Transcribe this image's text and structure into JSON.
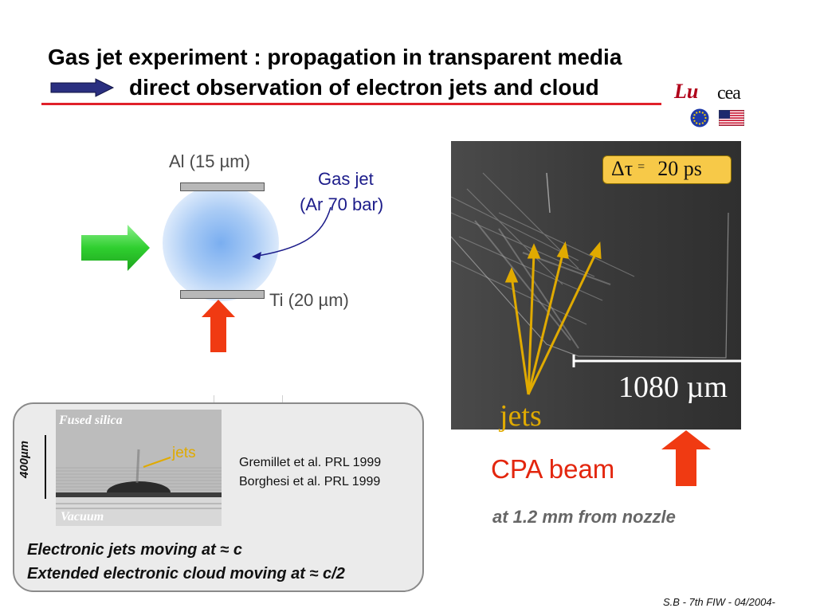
{
  "title": {
    "line1": "Gas jet experiment : propagation in transparent media",
    "line2": "direct observation of electron jets and cloud"
  },
  "logos": {
    "luli": "Lu",
    "cea": "cea",
    "eu_flag_icon": "eu-flag-icon",
    "us_flag_icon": "us-flag-icon"
  },
  "schematic": {
    "al_label": "Al (15 µm)",
    "ti_label": "Ti (20 µm)",
    "gas_jet_line1": "Gas jet",
    "gas_jet_line2": "(Ar 70 bar)"
  },
  "image_panel": {
    "delay_symbol": "Δτ",
    "delay_equals": "=",
    "delay_value": "20 ps",
    "scale_label": "1080 µm",
    "jets_label": "jets",
    "beam_label": "CPA beam",
    "distance_label": "at 1.2 mm from nozzle"
  },
  "bottom_panel": {
    "inset_top_label": "Fused silica",
    "inset_bottom_label": "Vacuum",
    "inset_jets_label": "jets",
    "inset_scale_label": "400µm",
    "reference1": "Gremillet et al. PRL 1999",
    "reference2": "Borghesi et al. PRL 1999",
    "bullet1": "Electronic jets moving at ≈ c",
    "bullet2": "Extended electronic cloud moving at ≈ c/2"
  },
  "footer": "S.B - 7th FIW - 04/2004-",
  "colors": {
    "title_rule": "#e0202a",
    "arrow_blue": "#2a2f80",
    "laser_red": "#f03a12",
    "green_arrow": "#3fd13f",
    "jets_yellow": "#e0aa00",
    "delay_box": "#f7c948"
  }
}
